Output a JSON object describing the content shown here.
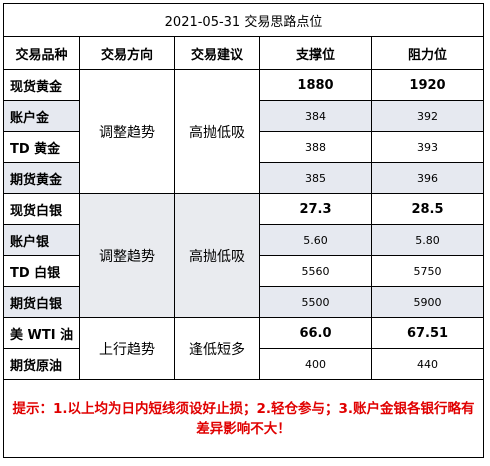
{
  "title": "2021-05-31 交易思路点位",
  "headers": [
    "交易品种",
    "交易方向",
    "交易建议",
    "支撑位",
    "阻力位"
  ],
  "groups": [
    {
      "direction": "调整趋势",
      "advice": "高抛低吸",
      "rows": [
        {
          "name": "现货黄金",
          "support": "1880",
          "resistance": "1920"
        },
        {
          "name": "账户金",
          "support": "384",
          "resistance": "392"
        },
        {
          "name": "TD 黄金",
          "support": "388",
          "resistance": "393"
        },
        {
          "name": "期货黄金",
          "support": "385",
          "resistance": "396"
        }
      ]
    },
    {
      "direction": "调整趋势",
      "advice": "高抛低吸",
      "rows": [
        {
          "name": "现货白银",
          "support": "27.3",
          "resistance": "28.5"
        },
        {
          "name": "账户银",
          "support": "5.60",
          "resistance": "5.80"
        },
        {
          "name": "TD 白银",
          "support": "5560",
          "resistance": "5750"
        },
        {
          "name": "期货白银",
          "support": "5500",
          "resistance": "5900"
        }
      ]
    },
    {
      "direction": "上行趋势",
      "advice": "逢低短多",
      "rows": [
        {
          "name": "美 WTI 油",
          "support": "66.0",
          "resistance": "67.51"
        },
        {
          "name": "期货原油",
          "support": "400",
          "resistance": "440"
        }
      ]
    }
  ],
  "note": "提示：1.以上均为日内短线须设好止损；2.轻仓参与；3.账户金银各银行略有差异影响不大！"
}
